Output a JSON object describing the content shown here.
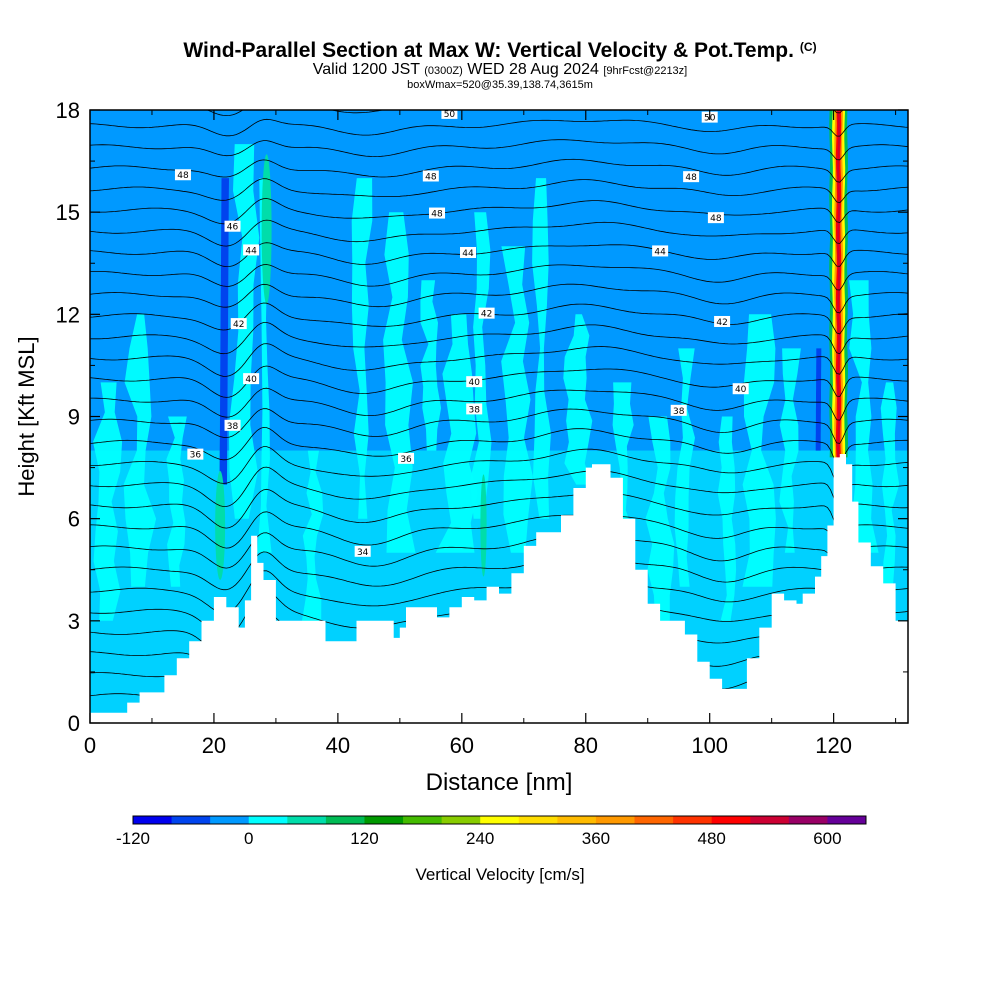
{
  "title": {
    "main": "Wind-Parallel Section at Max W: Vertical Velocity & Pot.Temp.",
    "copyright": "(C)",
    "valid_prefix": "Valid 1200 JST",
    "valid_utc": "(0300Z)",
    "valid_date": "WED 28 Aug 2024",
    "forecast": "[9hrFcst@2213z]",
    "box": "boxWmax=520@35.39,138.74,3615m"
  },
  "colors": {
    "background": "#0099ff",
    "ground": "#ffffff",
    "contour": "#000000",
    "colorbar": [
      "#0000ee",
      "#0044ee",
      "#0099ff",
      "#00ffff",
      "#00ddaa",
      "#00bb55",
      "#009900",
      "#44bb00",
      "#88cc00",
      "#ffff00",
      "#ffdd00",
      "#ffbb00",
      "#ff9900",
      "#ff6600",
      "#ff3300",
      "#ff0000",
      "#cc0033",
      "#990066",
      "#660099"
    ]
  },
  "chart_data": {
    "type": "heatmap",
    "xlabel": "Distance [nm]",
    "ylabel": "Height [Kft MSL]",
    "xlim": [
      0,
      132
    ],
    "ylim": [
      0,
      18
    ],
    "xticks": [
      "0",
      "20",
      "40",
      "60",
      "80",
      "100",
      "120"
    ],
    "yticks": [
      "0",
      "3",
      "6",
      "9",
      "12",
      "15",
      "18"
    ],
    "colorbar": {
      "label": "Vertical Velocity [cm/s]",
      "range": [
        -120,
        640
      ],
      "step": 40,
      "tick_labels": [
        "-120",
        "0",
        "120",
        "240",
        "360",
        "480",
        "600"
      ]
    },
    "terrain": {
      "x": [
        0,
        6,
        8,
        12,
        14,
        16,
        18,
        20,
        22,
        24,
        25,
        26,
        27,
        28,
        30,
        34,
        38,
        41,
        43,
        46,
        49,
        50,
        51,
        53,
        56,
        58,
        60,
        62,
        64,
        66,
        68,
        70,
        72,
        74,
        76,
        78,
        80,
        81,
        82,
        83,
        84,
        86,
        88,
        90,
        92,
        94,
        96,
        98,
        100,
        102,
        104,
        106,
        108,
        110,
        112,
        114,
        115,
        117,
        118,
        119,
        120,
        121,
        122,
        123,
        124,
        126,
        128,
        130,
        132
      ],
      "y": [
        0.3,
        0.6,
        0.9,
        1.4,
        1.9,
        2.4,
        3.0,
        3.7,
        3.4,
        2.8,
        3.6,
        5.5,
        4.7,
        4.2,
        3.0,
        3.0,
        2.4,
        2.4,
        3.0,
        3.0,
        2.5,
        2.8,
        3.4,
        3.4,
        3.1,
        3.4,
        3.7,
        3.6,
        4.0,
        3.8,
        4.4,
        5.2,
        5.6,
        5.6,
        6.1,
        6.9,
        7.5,
        7.6,
        7.6,
        7.6,
        7.2,
        6.0,
        4.5,
        3.5,
        3.0,
        3.0,
        2.6,
        1.8,
        1.3,
        1.0,
        1.0,
        1.9,
        2.8,
        3.8,
        3.6,
        3.5,
        3.8,
        4.3,
        4.9,
        5.8,
        7.8,
        7.9,
        7.6,
        6.5,
        5.3,
        4.6,
        4.1,
        3.0,
        2.4
      ]
    },
    "features": [
      {
        "type": "updraft",
        "x": 120.8,
        "x_width": 0.9,
        "y_range": [
          7.8,
          18
        ],
        "w_max": 520
      },
      {
        "type": "downdraft",
        "x": 21.5,
        "x_width": 1.2,
        "y_range": [
          7,
          16
        ],
        "w_min": -100
      },
      {
        "type": "downdraft",
        "x": 117.5,
        "x_width": 0.8,
        "y_range": [
          8,
          11
        ],
        "w_min": -80
      }
    ],
    "contours": [
      {
        "label": "50",
        "base": 17.9,
        "label_x": [
          58,
          100
        ]
      },
      {
        "label": "48",
        "base": 16.1,
        "label_x": [
          15,
          55,
          97
        ]
      },
      {
        "label": "48",
        "base": 15.0,
        "label_x": [
          56,
          101
        ]
      },
      {
        "label": "46",
        "base": 14.9,
        "label_x": [
          23
        ]
      },
      {
        "label": "44",
        "base": 13.8,
        "label_x": [
          26,
          61,
          92
        ]
      },
      {
        "label": "42",
        "base": 12.0,
        "label_x": [
          24,
          64,
          102
        ]
      },
      {
        "label": "40",
        "base": 10.0,
        "label_x": [
          26,
          62,
          105
        ]
      },
      {
        "label": "38",
        "base": 9.2,
        "label_x": [
          23,
          62,
          95
        ]
      },
      {
        "label": "36",
        "base": 8.0,
        "label_x": [
          17,
          51
        ]
      },
      {
        "label": "34",
        "base": 5.5,
        "label_x": [
          44
        ]
      }
    ]
  }
}
